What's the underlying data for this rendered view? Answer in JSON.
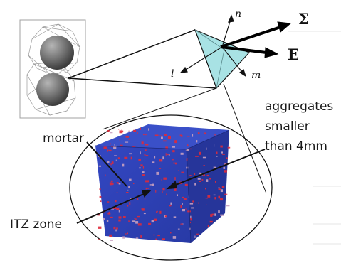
{
  "labels": {
    "mortar": "mortar",
    "aggregates_line1": "aggregates",
    "aggregates_line2": "smaller",
    "aggregates_line3": "than 4mm",
    "itz": "ITZ zone"
  },
  "axes": {
    "n": "n",
    "l": "l",
    "m": "m",
    "sigma": "Σ",
    "e": "E"
  },
  "colors": {
    "cube_front": "#2f43b8",
    "cube_top": "#3a50c8",
    "cube_side": "#26359a",
    "itz_red": "#e02a3a",
    "tetra_fill": "#a8e2e4",
    "sphere": "#6f6f6f"
  }
}
